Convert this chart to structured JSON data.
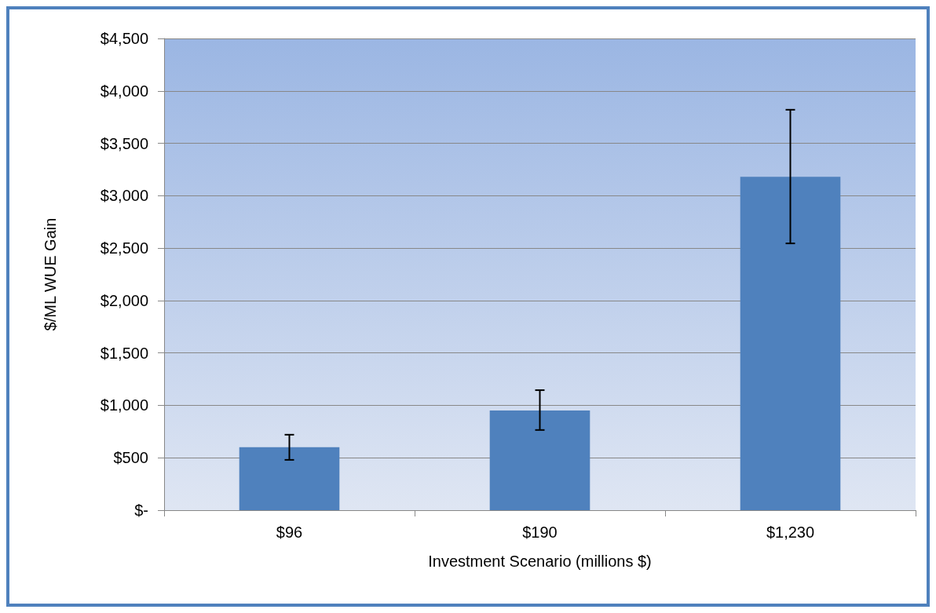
{
  "chart_data": {
    "type": "bar",
    "xlabel": "Investment Scenario (millions $)",
    "ylabel": "$/ML WUE Gain",
    "categories": [
      "$96",
      "$190",
      "$1,230"
    ],
    "values": [
      600,
      950,
      3180
    ],
    "errors": [
      [
        480,
        720
      ],
      [
        765,
        1145
      ],
      [
        2545,
        3820
      ]
    ],
    "color": "#4f81bd",
    "ylim": [
      0,
      4500
    ],
    "yticks": [
      {
        "value": 0,
        "label": "$-"
      },
      {
        "value": 500,
        "label": "$500"
      },
      {
        "value": 1000,
        "label": "$1,000"
      },
      {
        "value": 1500,
        "label": "$1,500"
      },
      {
        "value": 2000,
        "label": "$2,000"
      },
      {
        "value": 2500,
        "label": "$2,500"
      },
      {
        "value": 3000,
        "label": "$3,000"
      },
      {
        "value": 3500,
        "label": "$3,500"
      },
      {
        "value": 4000,
        "label": "$4,000"
      },
      {
        "value": 4500,
        "label": "$4,500"
      }
    ],
    "grid": "y"
  }
}
